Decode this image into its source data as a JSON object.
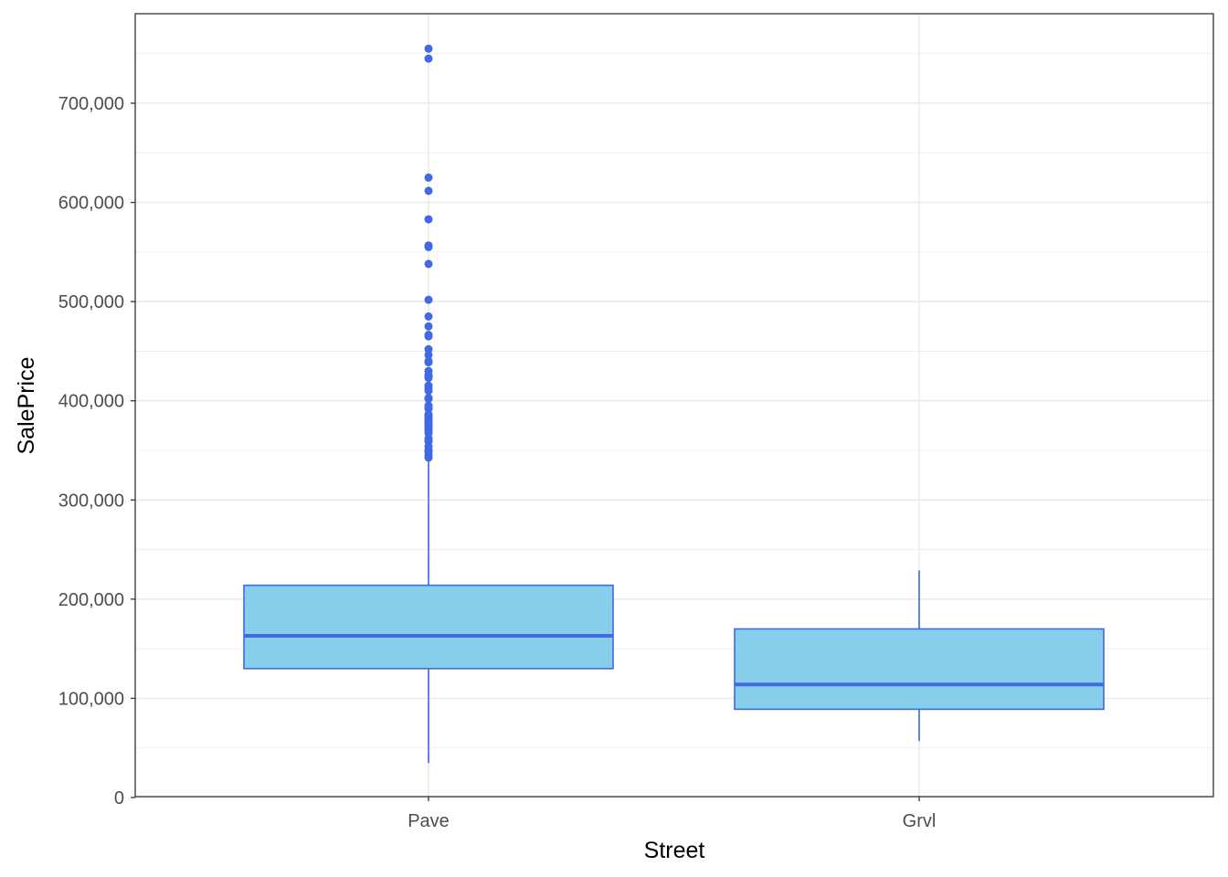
{
  "chart_data": {
    "type": "boxplot",
    "xlabel": "Street",
    "ylabel": "SalePrice",
    "categories": [
      "Pave",
      "Grvl"
    ],
    "ylim": [
      0,
      790000
    ],
    "yticks": [
      0,
      100000,
      200000,
      300000,
      400000,
      500000,
      600000,
      700000
    ],
    "ytick_labels": [
      "0",
      "100,000",
      "200,000",
      "300,000",
      "400,000",
      "500,000",
      "600,000",
      "700,000"
    ],
    "grid": true,
    "boxes": [
      {
        "category": "Pave",
        "whisker_low": 34900,
        "q1": 130000,
        "median": 163000,
        "q3": 214000,
        "whisker_high": 341000,
        "outliers": [
          755000,
          745000,
          625000,
          611657,
          582933,
          556581,
          555000,
          538000,
          501837,
          485000,
          475000,
          466500,
          465000,
          451950,
          446261,
          440000,
          438780,
          430000,
          426000,
          424870,
          423000,
          415298,
          412500,
          410000,
          402861,
          402000,
          395192,
          394617,
          392500,
          392000,
          386250,
          385000,
          384000,
          383970,
          381000,
          380000,
          378500,
          377500,
          377426,
          375000,
          374000,
          372500,
          372402,
          370878,
          369900,
          367294,
          361919,
          360000,
          359100,
          354000,
          350000,
          349265,
          348000,
          345000,
          342643
        ]
      },
      {
        "category": "Grvl",
        "whisker_low": 57000,
        "q1": 89000,
        "median": 114000,
        "q3": 170000,
        "whisker_high": 228950,
        "outliers": []
      }
    ],
    "colors": {
      "fill": "#87CEEB",
      "line": "#4169E1",
      "grid": "#EBEBEB",
      "panel_border": "#333333"
    }
  }
}
